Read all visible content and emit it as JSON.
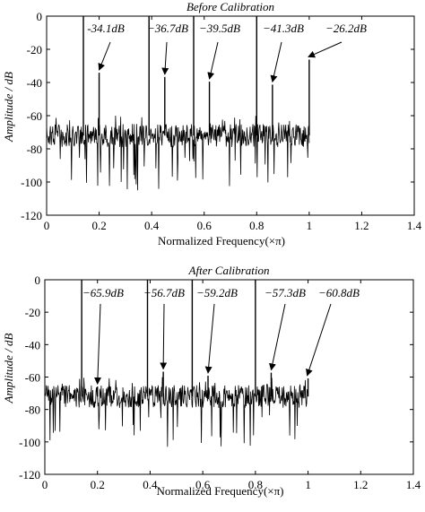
{
  "chart_data": [
    {
      "type": "line",
      "title": "Before Calibration",
      "xlabel": "Normalized Frequency(×π)",
      "ylabel": "Amplitude / dB",
      "xlim": [
        0,
        1.4
      ],
      "ylim": [
        -120,
        0
      ],
      "xticks": [
        "0",
        "0.2",
        "0.4",
        "0.6",
        "0.8",
        "1",
        "1.2",
        "1.4"
      ],
      "yticks": [
        "0",
        "-20",
        "-40",
        "-60",
        "-80",
        "-100",
        "-120"
      ],
      "grid": false,
      "noise_floor_db": -72,
      "noise_range_db": [
        -105,
        -60
      ],
      "x_end": 1.0,
      "tones": [
        {
          "x": 0.14,
          "y": 0
        },
        {
          "x": 0.39,
          "y": 0
        },
        {
          "x": 0.56,
          "y": 0
        },
        {
          "x": 0.8,
          "y": 0
        }
      ],
      "spurs": [
        {
          "x": 0.2,
          "y": -34.1
        },
        {
          "x": 0.45,
          "y": -36.7
        },
        {
          "x": 0.62,
          "y": -39.5
        },
        {
          "x": 0.86,
          "y": -41.3
        },
        {
          "x": 1.0,
          "y": -26.2
        }
      ],
      "annotations": [
        "-34.1dB",
        "−36.7dB",
        "−39.5dB",
        "−41.3dB",
        "−26.2dB"
      ]
    },
    {
      "type": "line",
      "title": "After  Calibration",
      "xlabel": "Normalized Frequency(×π)",
      "ylabel": "Amplitude / dB",
      "xlim": [
        0,
        1.4
      ],
      "ylim": [
        -120,
        0
      ],
      "xticks": [
        "0",
        "0.2",
        "0.4",
        "0.6",
        "0.8",
        "1",
        "1.2",
        "1.4"
      ],
      "yticks": [
        "0",
        "-20",
        "-40",
        "-60",
        "-80",
        "-100",
        "-120"
      ],
      "grid": false,
      "noise_floor_db": -72,
      "noise_range_db": [
        -103,
        -60
      ],
      "x_end": 1.0,
      "tones": [
        {
          "x": 0.14,
          "y": 0
        },
        {
          "x": 0.39,
          "y": 0
        },
        {
          "x": 0.56,
          "y": 0
        },
        {
          "x": 0.8,
          "y": 0
        }
      ],
      "spurs": [
        {
          "x": 0.2,
          "y": -65.9
        },
        {
          "x": 0.45,
          "y": -56.7
        },
        {
          "x": 0.62,
          "y": -59.2
        },
        {
          "x": 0.86,
          "y": -57.3
        },
        {
          "x": 1.0,
          "y": -60.8
        }
      ],
      "annotations": [
        "−65.9dB",
        "−56.7dB",
        "−59.2dB",
        "−57.3dB",
        "−60.8dB"
      ]
    }
  ]
}
